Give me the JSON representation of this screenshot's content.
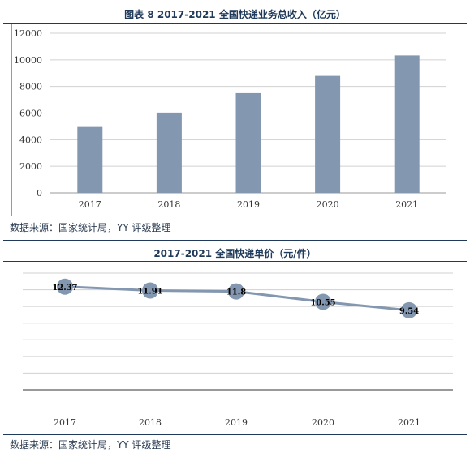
{
  "colors": {
    "accent": "#1f3a5a",
    "bar": "#8497b0",
    "line": "#8497b0",
    "grid": "#d0d0d0"
  },
  "chart_data": [
    {
      "type": "bar",
      "title": "图表 8 2017-2021 全国快递业务总收入（亿元）",
      "xlabel": "",
      "ylabel": "",
      "categories": [
        "2017",
        "2018",
        "2019",
        "2020",
        "2021"
      ],
      "values": [
        4957,
        6038,
        7498,
        8795,
        10332
      ],
      "ylim": [
        0,
        12000
      ],
      "yticks": [
        0,
        2000,
        4000,
        6000,
        8000,
        10000,
        12000
      ],
      "grid": true,
      "source": "数据来源：国家统计局，YY 评级整理"
    },
    {
      "type": "line",
      "title": "2017-2021 全国快递单价（元/件）",
      "xlabel": "",
      "ylabel": "",
      "categories": [
        "2017",
        "2018",
        "2019",
        "2020",
        "2021"
      ],
      "values": [
        12.37,
        11.91,
        11.8,
        10.55,
        9.54
      ],
      "ylim": [
        0,
        14
      ],
      "data_labels": true,
      "grid": true,
      "source": "数据来源：国家统计局，YY 评级整理"
    }
  ]
}
